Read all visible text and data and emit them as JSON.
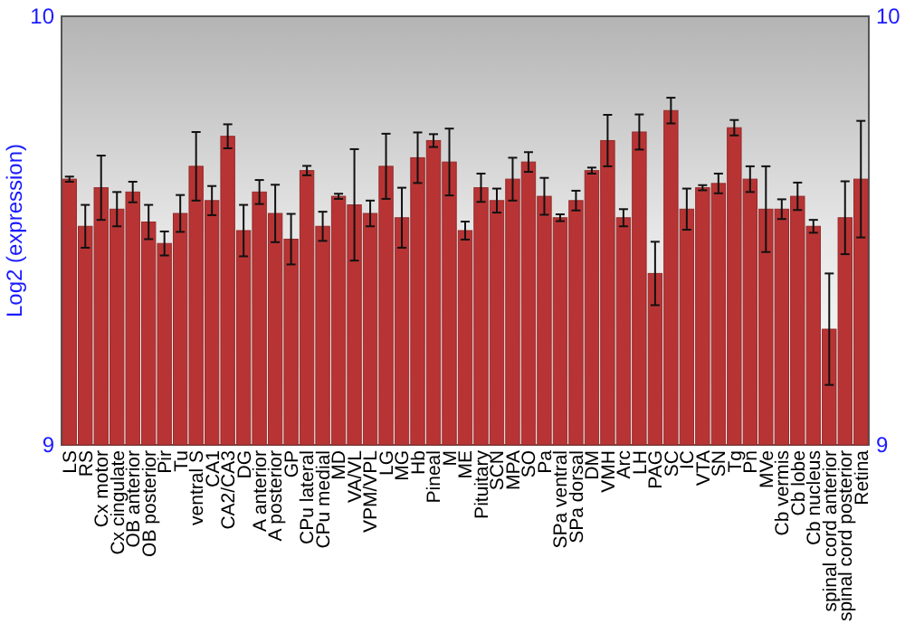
{
  "chart_data": {
    "type": "bar",
    "ylabel": "Log2 (expression)",
    "categories": [
      "LS",
      "RS",
      "Cx motor",
      "Cx cingulate",
      "OB anterior",
      "OB posterior",
      "Pir",
      "Tu",
      "ventral S",
      "CA1",
      "CA2/CA3",
      "DG",
      "A anterior",
      "A posterior",
      "GP",
      "CPu lateral",
      "CPu medial",
      "MD",
      "VA/VL",
      "VPM/VPL",
      "LG",
      "MG",
      "Hb",
      "Pineal",
      "M",
      "ME",
      "Pituitary",
      "SCN",
      "MPA",
      "SO",
      "Pa",
      "SPa ventral",
      "SPa dorsal",
      "DM",
      "VMH",
      "Arc",
      "LH",
      "PAG",
      "SC",
      "IC",
      "VTA",
      "SN",
      "Tg",
      "Pn",
      "MVe",
      "Cb vermis",
      "Cb lobe",
      "Cb nucleus",
      "spinal cord anterior",
      "spinal cord posterior",
      "Retina"
    ],
    "values": [
      9.62,
      9.51,
      9.6,
      9.55,
      9.59,
      9.52,
      9.47,
      9.54,
      9.65,
      9.57,
      9.72,
      9.5,
      9.59,
      9.54,
      9.48,
      9.64,
      9.51,
      9.58,
      9.56,
      9.54,
      9.65,
      9.53,
      9.67,
      9.71,
      9.66,
      9.5,
      9.6,
      9.57,
      9.62,
      9.66,
      9.58,
      9.53,
      9.57,
      9.64,
      9.71,
      9.53,
      9.73,
      9.4,
      9.78,
      9.55,
      9.6,
      9.61,
      9.74,
      9.62,
      9.55,
      9.55,
      9.58,
      9.51,
      9.27,
      9.53,
      9.62
    ],
    "errors": [
      0.006,
      0.05,
      0.075,
      0.04,
      0.024,
      0.04,
      0.028,
      0.043,
      0.08,
      0.034,
      0.028,
      0.06,
      0.028,
      0.067,
      0.059,
      0.011,
      0.034,
      0.006,
      0.13,
      0.03,
      0.076,
      0.07,
      0.059,
      0.015,
      0.078,
      0.021,
      0.033,
      0.028,
      0.05,
      0.023,
      0.043,
      0.008,
      0.023,
      0.007,
      0.06,
      0.02,
      0.041,
      0.074,
      0.03,
      0.048,
      0.006,
      0.023,
      0.018,
      0.03,
      0.1,
      0.023,
      0.032,
      0.015,
      0.13,
      0.085,
      0.136
    ],
    "color": "#b83434",
    "ylim": [
      9,
      10
    ],
    "yticks": [
      9,
      10
    ],
    "y2lim": [
      9,
      10
    ],
    "y2ticks": [
      9,
      10
    ],
    "grid": false
  }
}
